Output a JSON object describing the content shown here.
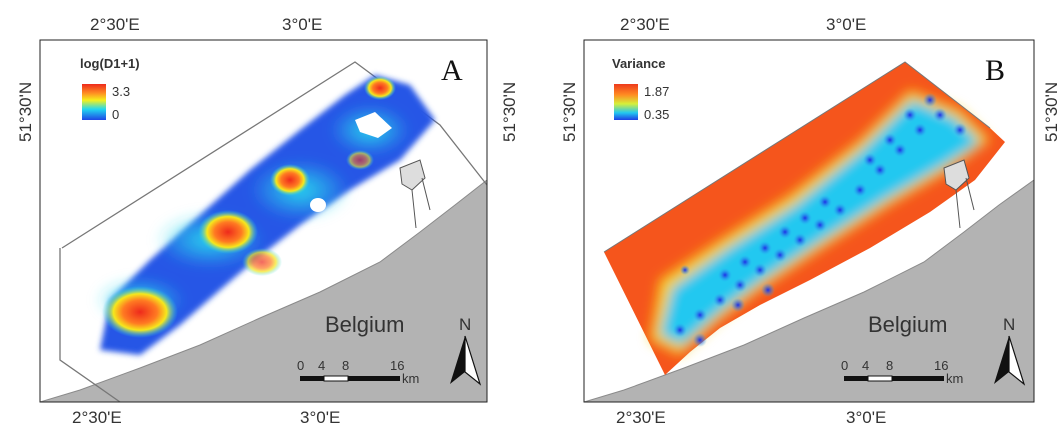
{
  "panels": [
    {
      "id": "A",
      "panel_letter": "A",
      "legend_title": "log(D1+1)",
      "legend_max": "3.3",
      "legend_min": "0",
      "top_lon_labels": [
        "2°30'E",
        "3°0'E"
      ],
      "bottom_lon_labels": [
        "2°30'E",
        "3°0'E"
      ],
      "lat_label_left": "51°30'N",
      "lat_label_right": "51°30'N",
      "country": "Belgium",
      "north": "N",
      "scale_ticks": [
        "0",
        "4",
        "8",
        "16"
      ],
      "scale_unit": "km"
    },
    {
      "id": "B",
      "panel_letter": "B",
      "legend_title": "Variance",
      "legend_max": "1.87",
      "legend_min": "0.35",
      "top_lon_labels": [
        "2°30'E",
        "3°0'E"
      ],
      "bottom_lon_labels": [
        "2°30'E",
        "3°0'E"
      ],
      "lat_label_left": "51°30'N",
      "lat_label_right": "51°30'N",
      "country": "Belgium",
      "north": "N",
      "scale_ticks": [
        "0",
        "4",
        "8",
        "16"
      ],
      "scale_unit": "km"
    }
  ],
  "colors": {
    "land": "#b3b3b3",
    "coastline": "#8a8a8a",
    "ramp_high": "#ee2a1c",
    "ramp_mid_orange": "#ff8c22",
    "ramp_mid_yellow": "#f6f01c",
    "ramp_mid_cyan": "#22d8f0",
    "ramp_low": "#1e46e6"
  }
}
